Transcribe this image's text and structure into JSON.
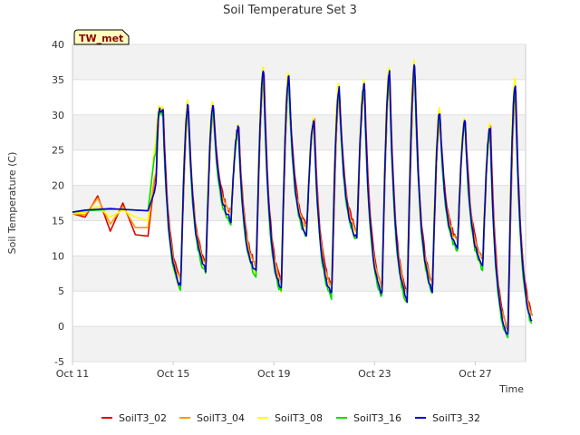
{
  "chart_data": {
    "type": "line",
    "title": "Soil Temperature Set 3",
    "xlabel": "Time",
    "ylabel": "Soil Temperature (C)",
    "ylim": [
      -5,
      40
    ],
    "yticks": [
      -5,
      0,
      5,
      10,
      15,
      20,
      25,
      30,
      35,
      40
    ],
    "xlim": [
      "2016-10-11",
      "2016-10-29"
    ],
    "xticks": [
      {
        "day": 11,
        "label": "Oct 11"
      },
      {
        "day": 15,
        "label": "Oct 15"
      },
      {
        "day": 19,
        "label": "Oct 19"
      },
      {
        "day": 23,
        "label": "Oct 23"
      },
      {
        "day": 27,
        "label": "Oct 27"
      }
    ],
    "badge": "TW_met",
    "legend_position": "bottom",
    "grid": "alternating horizontal bands",
    "daily_cycle": {
      "days": [
        "2016-10-14",
        "2016-10-15",
        "2016-10-16",
        "2016-10-17",
        "2016-10-18",
        "2016-10-19",
        "2016-10-20",
        "2016-10-21",
        "2016-10-22",
        "2016-10-23",
        "2016-10-24",
        "2016-10-25",
        "2016-10-26",
        "2016-10-27",
        "2016-10-28"
      ],
      "min": [
        12.8,
        5.5,
        8.0,
        15.0,
        7.5,
        5.0,
        13.0,
        4.5,
        12.5,
        4.5,
        3.5,
        5.0,
        11.0,
        8.5,
        -1.5
      ],
      "max": [
        30.5,
        31.0,
        31.0,
        28.0,
        36.0,
        35.0,
        29.0,
        33.5,
        34.0,
        35.5,
        36.5,
        30.0,
        29.0,
        28.0,
        34.0
      ]
    },
    "series": [
      {
        "name": "SoilT3_02",
        "color": "#dd0000",
        "x": [
          "2016-10-11 00:00",
          "2016-10-11 12:00",
          "2016-10-12 00:00",
          "2016-10-12 12:00",
          "2016-10-13 00:00",
          "2016-10-13 12:00",
          "2016-10-14 00:00",
          "2016-10-14 06:00"
        ],
        "values": [
          16.0,
          15.5,
          18.5,
          13.5,
          17.5,
          13.0,
          12.8,
          20.5
        ]
      },
      {
        "name": "SoilT3_04",
        "color": "#ff9900",
        "x": [
          "2016-10-11 00:00",
          "2016-10-11 12:00",
          "2016-10-12 00:00",
          "2016-10-12 12:00",
          "2016-10-13 00:00",
          "2016-10-13 12:00",
          "2016-10-14 00:00",
          "2016-10-14 06:00"
        ],
        "values": [
          16.0,
          15.8,
          18.2,
          14.5,
          17.0,
          14.0,
          14.0,
          21.0
        ]
      },
      {
        "name": "SoilT3_08",
        "color": "#ffff00",
        "x": [
          "2016-10-11 00:00",
          "2016-10-11 12:00",
          "2016-10-12 00:00",
          "2016-10-12 12:00",
          "2016-10-13 00:00",
          "2016-10-13 12:00",
          "2016-10-14 00:00",
          "2016-10-14 06:00"
        ],
        "values": [
          16.0,
          16.2,
          17.0,
          15.5,
          16.5,
          15.5,
          15.0,
          25.0
        ]
      },
      {
        "name": "SoilT3_16",
        "color": "#00dd00",
        "x": [
          "2016-10-11 00:00",
          "2016-10-11 12:00",
          "2016-10-12 00:00",
          "2016-10-12 12:00",
          "2016-10-13 00:00",
          "2016-10-13 12:00",
          "2016-10-14 00:00",
          "2016-10-14 06:00"
        ],
        "values": [
          16.2,
          16.4,
          16.5,
          16.6,
          16.6,
          16.5,
          16.4,
          24.0
        ]
      },
      {
        "name": "SoilT3_32",
        "color": "#0000cc",
        "x": [
          "2016-10-11 00:00",
          "2016-10-11 12:00",
          "2016-10-12 00:00",
          "2016-10-12 12:00",
          "2016-10-13 00:00",
          "2016-10-13 12:00",
          "2016-10-14 00:00",
          "2016-10-14 06:00"
        ],
        "values": [
          16.2,
          16.5,
          16.6,
          16.7,
          16.6,
          16.5,
          16.4,
          19.0
        ]
      }
    ]
  }
}
